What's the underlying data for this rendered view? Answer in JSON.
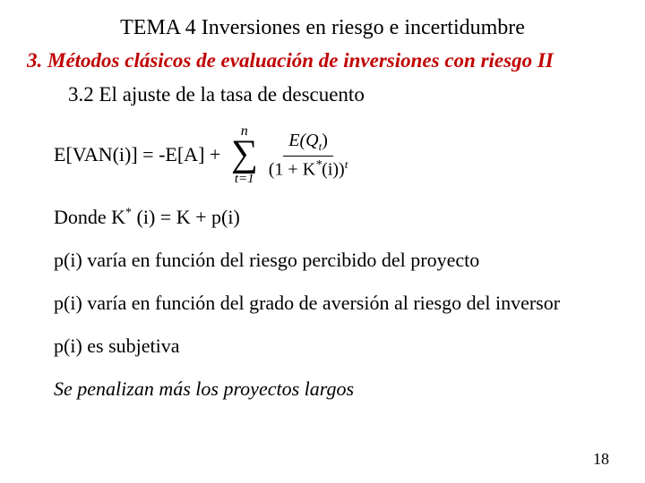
{
  "title": "TEMA 4 Inversiones en riesgo e incertidumbre",
  "section_heading": "3. Métodos clásicos de evaluación de inversiones con riesgo II",
  "subsection_heading": "3.2 El ajuste de la tasa de descuento",
  "formula": {
    "lhs": "E[VAN(i)] = -E[A] + ",
    "sum_upper": "n",
    "sum_lower": "t=1",
    "frac_num_left": "E(Q",
    "frac_num_sub": "t",
    "frac_num_right": ")",
    "frac_den_left": "(1 + K",
    "frac_den_star": "*",
    "frac_den_mid": "(i))",
    "frac_den_sup": "t"
  },
  "donde_prefix": "Donde K",
  "donde_star": "*",
  "donde_suffix": " (i) = K + p(i)",
  "lines": {
    "l1": "p(i) varía en función del riesgo percibido del proyecto",
    "l2": "p(i) varía en función del grado de aversión al riesgo del inversor",
    "l3": "p(i) es subjetiva",
    "l4": "Se penalizan más los proyectos largos"
  },
  "page_number": "18",
  "colors": {
    "heading": "#c00000",
    "text": "#000000",
    "background": "#ffffff"
  },
  "font": {
    "family": "Times New Roman",
    "title_size_pt": 24,
    "body_size_pt": 22
  }
}
